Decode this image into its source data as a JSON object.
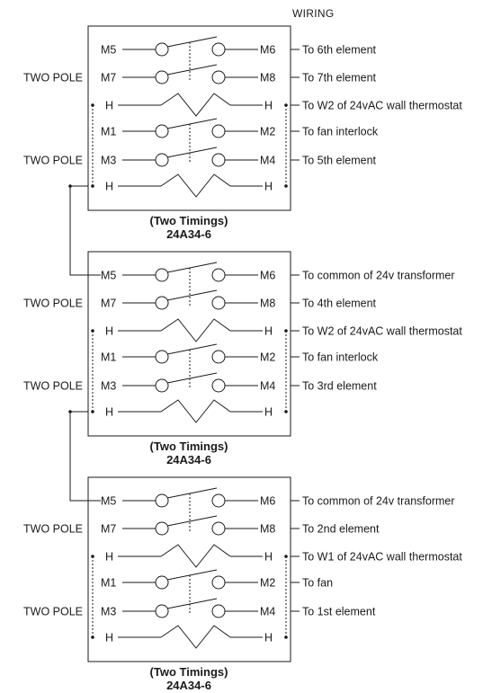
{
  "title": "WIRING",
  "blocks": [
    {
      "pole_labels": [
        "TWO POLE",
        "TWO POLE"
      ],
      "rows": [
        {
          "left": "M5",
          "right": "M6",
          "note": "To 6th element"
        },
        {
          "left": "M7",
          "right": "M8",
          "note": "To 7th element"
        },
        {
          "left": "H",
          "right": "H",
          "note": "To W2 of 24vAC wall thermostat"
        },
        {
          "left": "M1",
          "right": "M2",
          "note": "To fan interlock"
        },
        {
          "left": "M3",
          "right": "M4",
          "note": "To 5th element"
        },
        {
          "left": "H",
          "right": "H",
          "note": ""
        }
      ],
      "caption_line1": "(Two Timings)",
      "caption_line2": "24A34-6"
    },
    {
      "pole_labels": [
        "TWO POLE",
        "TWO POLE"
      ],
      "rows": [
        {
          "left": "M5",
          "right": "M6",
          "note": "To common of 24v transformer"
        },
        {
          "left": "M7",
          "right": "M8",
          "note": "To 4th element"
        },
        {
          "left": "H",
          "right": "H",
          "note": "To W2 of 24vAC wall thermostat"
        },
        {
          "left": "M1",
          "right": "M2",
          "note": "To fan interlock"
        },
        {
          "left": "M3",
          "right": "M4",
          "note": "To 3rd element"
        },
        {
          "left": "H",
          "right": "H",
          "note": ""
        }
      ],
      "caption_line1": "(Two Timings)",
      "caption_line2": "24A34-6"
    },
    {
      "pole_labels": [
        "TWO POLE",
        "TWO POLE"
      ],
      "rows": [
        {
          "left": "M5",
          "right": "M6",
          "note": "To common of 24v transformer"
        },
        {
          "left": "M7",
          "right": "M8",
          "note": "To 2nd element"
        },
        {
          "left": "H",
          "right": "H",
          "note": "To W1 of 24vAC wall thermostat"
        },
        {
          "left": "M1",
          "right": "M2",
          "note": "To fan"
        },
        {
          "left": "M3",
          "right": "M4",
          "note": "To 1st element"
        },
        {
          "left": "H",
          "right": "H",
          "note": ""
        }
      ],
      "caption_line1": "(Two Timings)",
      "caption_line2": "24A34-6"
    }
  ]
}
